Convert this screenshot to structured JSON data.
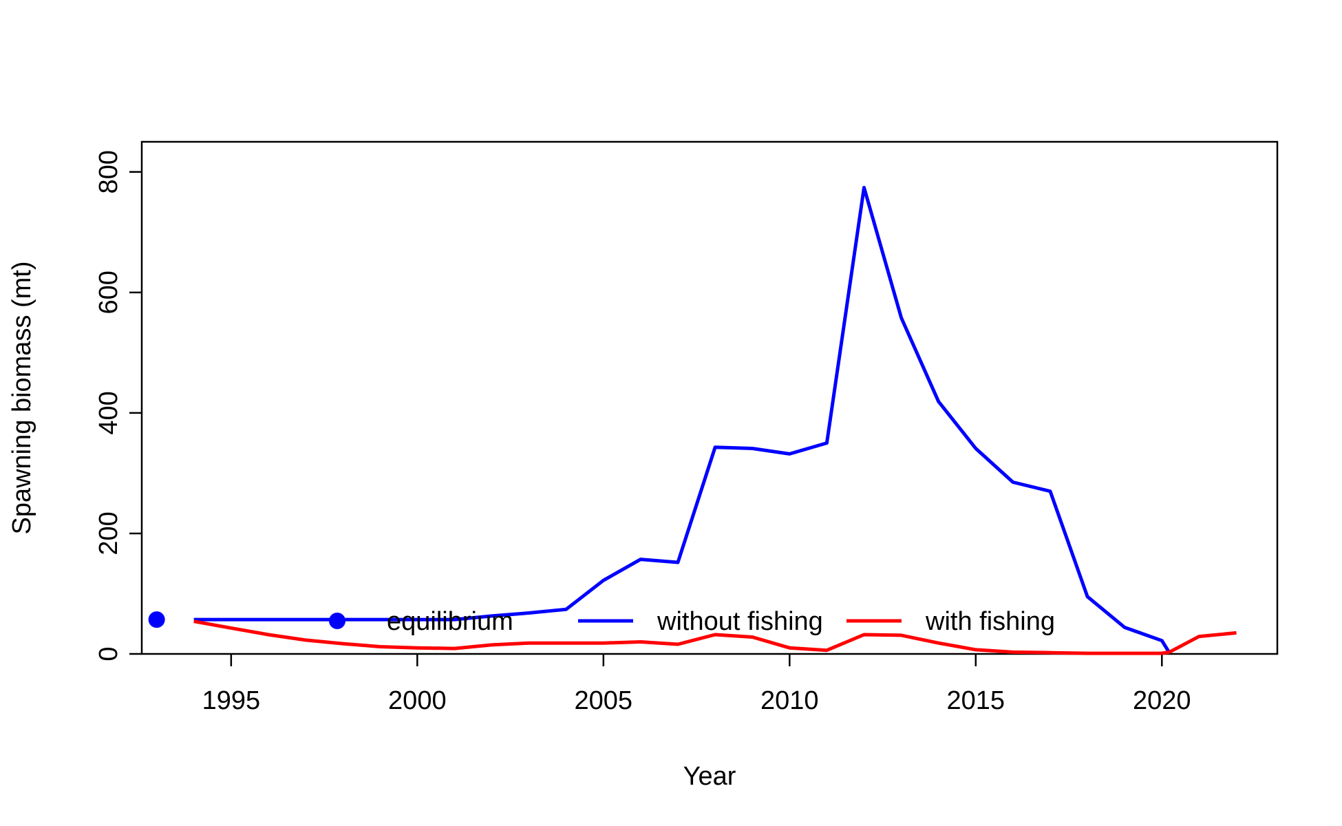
{
  "chart_data": {
    "type": "line",
    "xlabel": "Year",
    "ylabel": "Spawning biomass (mt)",
    "xlim": [
      1992.6,
      2023.1
    ],
    "ylim": [
      0,
      850
    ],
    "x_ticks": [
      1995,
      2000,
      2005,
      2010,
      2015,
      2020
    ],
    "y_ticks": [
      0,
      200,
      400,
      600,
      800
    ],
    "legend_position": "bottom-center",
    "series": [
      {
        "name": "equilibrium",
        "color": "#0000ff",
        "marker": "circle",
        "x": [
          1993
        ],
        "y": [
          57
        ]
      },
      {
        "name": "without fishing",
        "color": "#0000ff",
        "x": [
          1994,
          1995,
          1996,
          1997,
          1998,
          1999,
          2000,
          2001,
          2002,
          2003,
          2004,
          2005,
          2006,
          2007,
          2008,
          2009,
          2010,
          2011,
          2012,
          2013,
          2014,
          2015,
          2016,
          2017,
          2018,
          2019,
          2020,
          2020.2
        ],
        "y": [
          57,
          57,
          57,
          57,
          57,
          57,
          57,
          57,
          63,
          68,
          74,
          122,
          157,
          152,
          343,
          341,
          332,
          350,
          774,
          558,
          419,
          341,
          285,
          270,
          95,
          44,
          22,
          2
        ]
      },
      {
        "name": "with fishing",
        "color": "#ff0000",
        "x": [
          1994,
          1995,
          1996,
          1997,
          1998,
          1999,
          2000,
          2001,
          2002,
          2003,
          2004,
          2005,
          2006,
          2007,
          2008,
          2009,
          2010,
          2011,
          2012,
          2013,
          2014,
          2015,
          2016,
          2017,
          2018,
          2019,
          2020,
          2020.2,
          2021,
          2022
        ],
        "y": [
          54,
          43,
          32,
          23,
          17,
          12,
          10,
          9,
          15,
          18,
          18,
          18,
          20,
          16,
          32,
          28,
          10,
          6,
          32,
          31,
          18,
          7,
          3,
          2,
          1,
          1,
          1,
          3,
          29,
          35
        ]
      }
    ]
  }
}
